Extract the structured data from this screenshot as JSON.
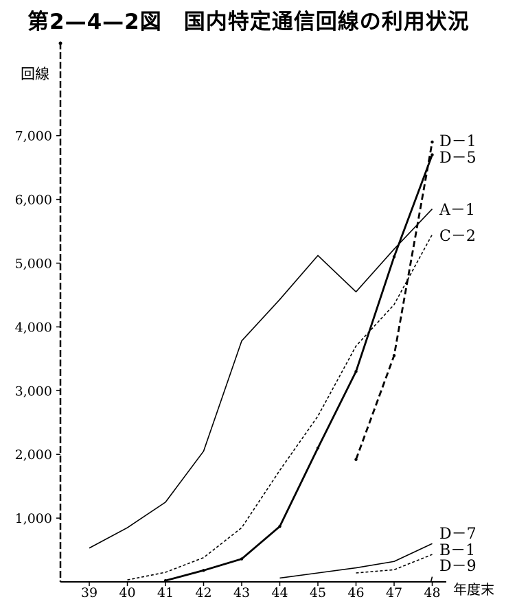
{
  "chart_data": {
    "type": "line",
    "title": "第2—4—2図　国内特定通信回線の利用状況",
    "ylabel": "回線",
    "xlabel": "年度末",
    "categories": [
      "39",
      "40",
      "41",
      "42",
      "43",
      "44",
      "45",
      "46",
      "47",
      "48"
    ],
    "y_ticks": [
      "1,000",
      "2,000",
      "3,000",
      "4,000",
      "5,000",
      "6,000",
      "7,000"
    ],
    "ylim": [
      0,
      7600
    ],
    "grid": false,
    "legend": "labels at line ends (right)",
    "series": [
      {
        "name": "A－1",
        "style": "solid-thin",
        "values": [
          530,
          850,
          1250,
          2050,
          3780,
          4430,
          5120,
          4550,
          5220,
          5850
        ]
      },
      {
        "name": "C－2",
        "style": "dashed-thin",
        "values": [
          null,
          30,
          150,
          380,
          850,
          1750,
          2600,
          3700,
          4350,
          5450
        ]
      },
      {
        "name": "D－1",
        "style": "solid-thick",
        "values": [
          null,
          null,
          20,
          180,
          360,
          870,
          2100,
          3300,
          5100,
          6700
        ]
      },
      {
        "name": "D－5",
        "style": "dashed-thick",
        "values": [
          null,
          null,
          null,
          null,
          null,
          null,
          null,
          1920,
          3550,
          6900
        ]
      },
      {
        "name": "D－7",
        "style": "solid-thin",
        "values": [
          null,
          null,
          null,
          null,
          null,
          60,
          140,
          220,
          320,
          600
        ]
      },
      {
        "name": "B－1",
        "style": "dashed-thin",
        "values": [
          null,
          null,
          null,
          null,
          null,
          null,
          null,
          140,
          190,
          430
        ]
      },
      {
        "name": "D－9",
        "style": "solid-thin",
        "values": [
          null,
          null,
          null,
          null,
          null,
          null,
          null,
          null,
          null,
          80
        ]
      }
    ]
  }
}
